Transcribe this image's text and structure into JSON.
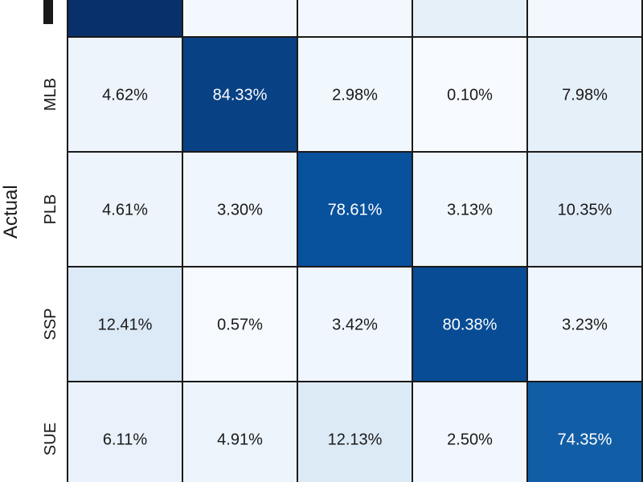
{
  "chart_data": {
    "type": "heatmap",
    "ylabel": "Actual",
    "rows": [
      "MLB",
      "PLB",
      "SSP",
      "SUE"
    ],
    "values": [
      [
        4.62,
        84.33,
        2.98,
        0.1,
        7.98
      ],
      [
        4.61,
        3.3,
        78.61,
        3.13,
        10.35
      ],
      [
        12.41,
        0.57,
        3.42,
        80.38,
        3.23
      ],
      [
        6.11,
        4.91,
        12.13,
        2.5,
        74.35
      ]
    ],
    "cell_labels": [
      [
        "4.62%",
        "84.33%",
        "2.98%",
        "0.10%",
        "7.98%"
      ],
      [
        "4.61%",
        "3.30%",
        "78.61%",
        "3.13%",
        "10.35%"
      ],
      [
        "12.41%",
        "0.57%",
        "3.42%",
        "80.38%",
        "3.23%"
      ],
      [
        "6.11%",
        "4.91%",
        "12.13%",
        "2.50%",
        "74.35%"
      ]
    ],
    "partial_top_row_values": [
      90,
      2,
      2,
      8,
      2
    ],
    "colormap": "Blues",
    "colors": {
      "low": "#f7fbff",
      "high": "#08306b",
      "grid": "#1a1a1a",
      "dark_text": "#1a1a1a",
      "light_text": "#ffffff"
    }
  }
}
